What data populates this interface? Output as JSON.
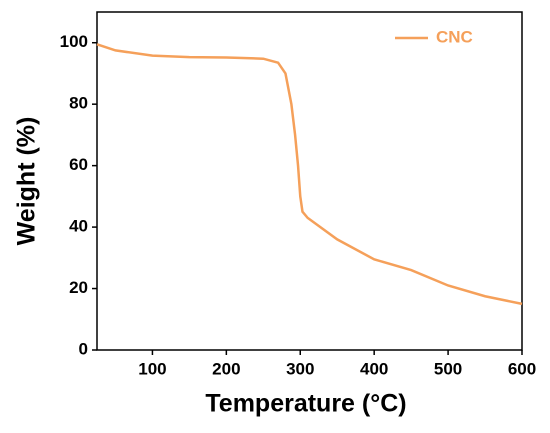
{
  "chart_data": {
    "type": "line",
    "x_label": "Temperature (°C)",
    "y_label": "Weight (%)",
    "x": [
      25,
      50,
      100,
      150,
      200,
      250,
      270,
      280,
      288,
      293,
      297,
      300,
      303,
      310,
      350,
      400,
      450,
      500,
      550,
      600
    ],
    "series": [
      {
        "name": "CNC",
        "color": "#f5a05a",
        "values": [
          99.5,
          97.5,
          95.8,
          95.3,
          95.2,
          94.8,
          93.5,
          90,
          80,
          70,
          60,
          50,
          45,
          43,
          36,
          29.5,
          26,
          21,
          17.5,
          15
        ]
      }
    ],
    "xlim": [
      25,
      600
    ],
    "ylim": [
      0,
      110
    ],
    "xticks": [
      100,
      200,
      300,
      400,
      500,
      600
    ],
    "yticks": [
      0,
      20,
      40,
      60,
      80,
      100
    ],
    "legend": "upper right",
    "grid": false
  }
}
